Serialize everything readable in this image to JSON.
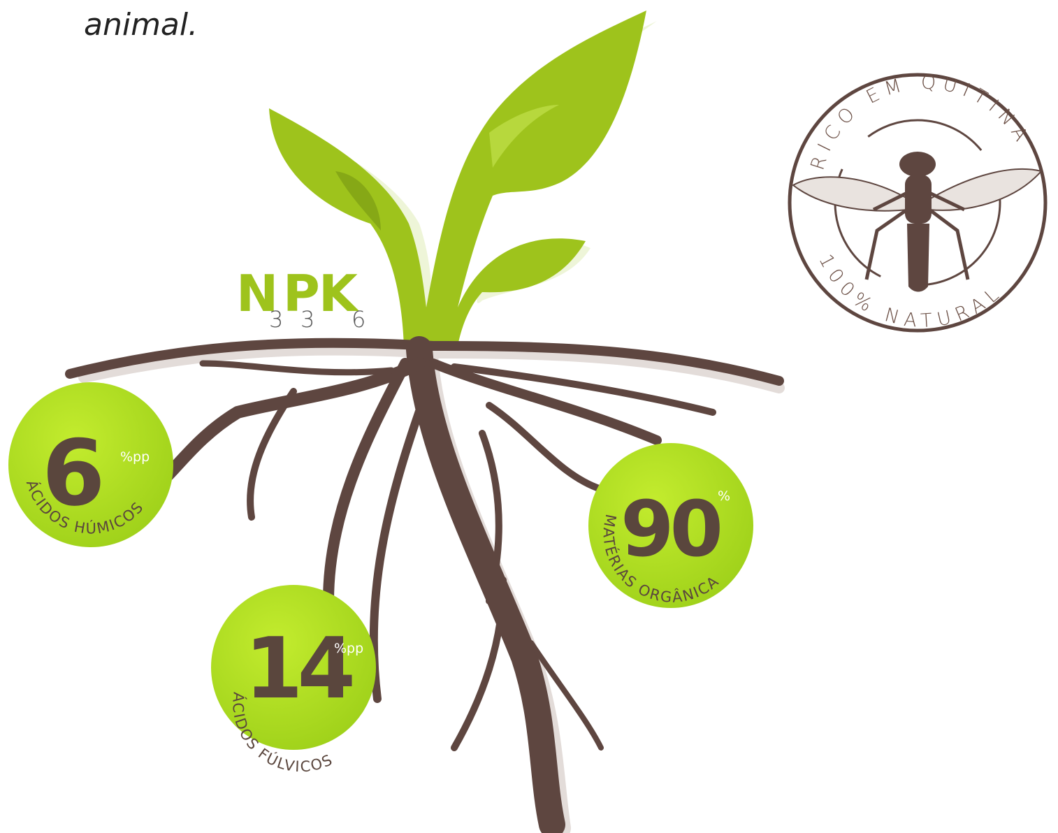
{
  "intro_text": "animal.",
  "npk": {
    "letters": [
      "N",
      "P",
      "K"
    ],
    "values": [
      3,
      3,
      6
    ]
  },
  "badge": {
    "top_text": "RICO EM QUITINA",
    "bottom_text": "100% NATURAL"
  },
  "stats": [
    {
      "value": 6,
      "unit": "%pp",
      "label": "ÁCIDOS HÚMICOS"
    },
    {
      "value": 14,
      "unit": "%pp",
      "label": "ÁCIDOS FÚLVICOS"
    },
    {
      "value": 90,
      "unit": "%",
      "label": "MATÉRIAS ORGÂNICA"
    }
  ]
}
